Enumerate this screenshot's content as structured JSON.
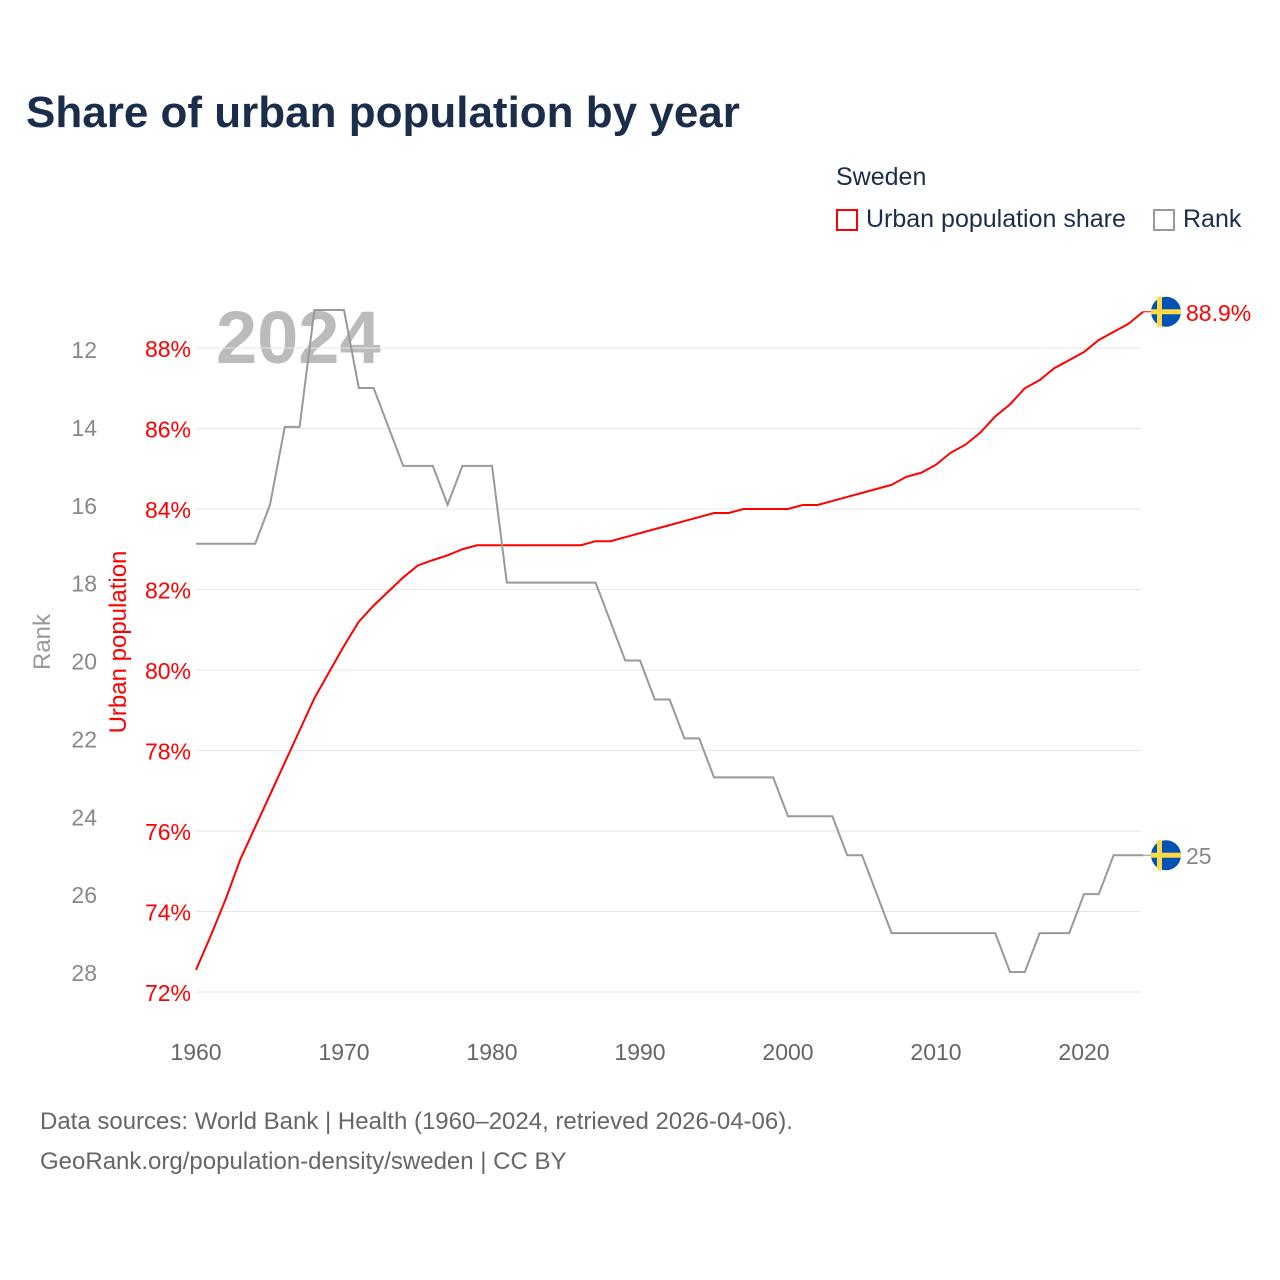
{
  "title": "Share of urban population by year",
  "legend": {
    "title": "Sweden",
    "items": [
      {
        "label": "Urban population share",
        "color": "#ff0000"
      },
      {
        "label": "Rank",
        "color": "#999999"
      }
    ]
  },
  "year_watermark": "2024",
  "sources": {
    "line1": "Data sources: World Bank | Health (1960–2024, retrieved 2026-04-06).",
    "line2": "GeoRank.org/population-density/sweden | CC BY"
  },
  "chart_data": {
    "type": "line",
    "title": "Share of urban population by year",
    "xlabel": "",
    "ylabel": "Urban population",
    "y2label": "Rank",
    "xlim": [
      1960,
      2024
    ],
    "ylim": [
      72,
      89
    ],
    "y2lim": [
      11,
      28
    ],
    "xticks": [
      1960,
      1970,
      1980,
      1990,
      2000,
      2010,
      2020
    ],
    "yticks": [
      "72%",
      "74%",
      "76%",
      "78%",
      "80%",
      "82%",
      "84%",
      "86%",
      "88%"
    ],
    "y2ticks": [
      "12",
      "14",
      "16",
      "18",
      "20",
      "22",
      "24",
      "26",
      "28"
    ],
    "x": [
      1960,
      1961,
      1962,
      1963,
      1964,
      1965,
      1966,
      1967,
      1968,
      1969,
      1970,
      1971,
      1972,
      1973,
      1974,
      1975,
      1976,
      1977,
      1978,
      1979,
      1980,
      1981,
      1982,
      1983,
      1984,
      1985,
      1986,
      1987,
      1988,
      1989,
      1990,
      1991,
      1992,
      1993,
      1994,
      1995,
      1996,
      1997,
      1998,
      1999,
      2000,
      2001,
      2002,
      2003,
      2004,
      2005,
      2006,
      2007,
      2008,
      2009,
      2010,
      2011,
      2012,
      2013,
      2014,
      2015,
      2016,
      2017,
      2018,
      2019,
      2020,
      2021,
      2022,
      2023,
      2024
    ],
    "series": [
      {
        "name": "Urban population share",
        "color": "#ff0000",
        "values": [
          72.55,
          73.4,
          74.3,
          75.3,
          76.1,
          76.9,
          77.7,
          78.5,
          79.3,
          79.95,
          80.6,
          81.2,
          81.6,
          81.95,
          82.3,
          82.6,
          82.73,
          82.85,
          83.0,
          83.1,
          83.1,
          83.1,
          83.1,
          83.1,
          83.1,
          83.1,
          83.1,
          83.2,
          83.2,
          83.3,
          83.4,
          83.5,
          83.6,
          83.7,
          83.8,
          83.9,
          83.9,
          84.0,
          84.0,
          84.0,
          84.0,
          84.1,
          84.1,
          84.2,
          84.3,
          84.4,
          84.5,
          84.6,
          84.8,
          84.9,
          85.1,
          85.4,
          85.6,
          85.9,
          86.3,
          86.6,
          87.0,
          87.2,
          87.5,
          87.7,
          87.9,
          88.2,
          88.4,
          88.6,
          88.9
        ],
        "end_label": "88.9%"
      },
      {
        "name": "Rank",
        "color": "#999999",
        "values": [
          17,
          17,
          17,
          17,
          17,
          16,
          14,
          14,
          11,
          11,
          11,
          13,
          13,
          14,
          15,
          15,
          15,
          16,
          15,
          15,
          15,
          18,
          18,
          18,
          18,
          18,
          18,
          18,
          19,
          20,
          20,
          21,
          21,
          22,
          22,
          23,
          23,
          23,
          23,
          23,
          24,
          24,
          24,
          24,
          25,
          25,
          26,
          27,
          27,
          27,
          27,
          27,
          27,
          27,
          27,
          28,
          28,
          27,
          27,
          27,
          26,
          26,
          25,
          25,
          25
        ],
        "end_label": "25"
      }
    ],
    "grid": true
  }
}
